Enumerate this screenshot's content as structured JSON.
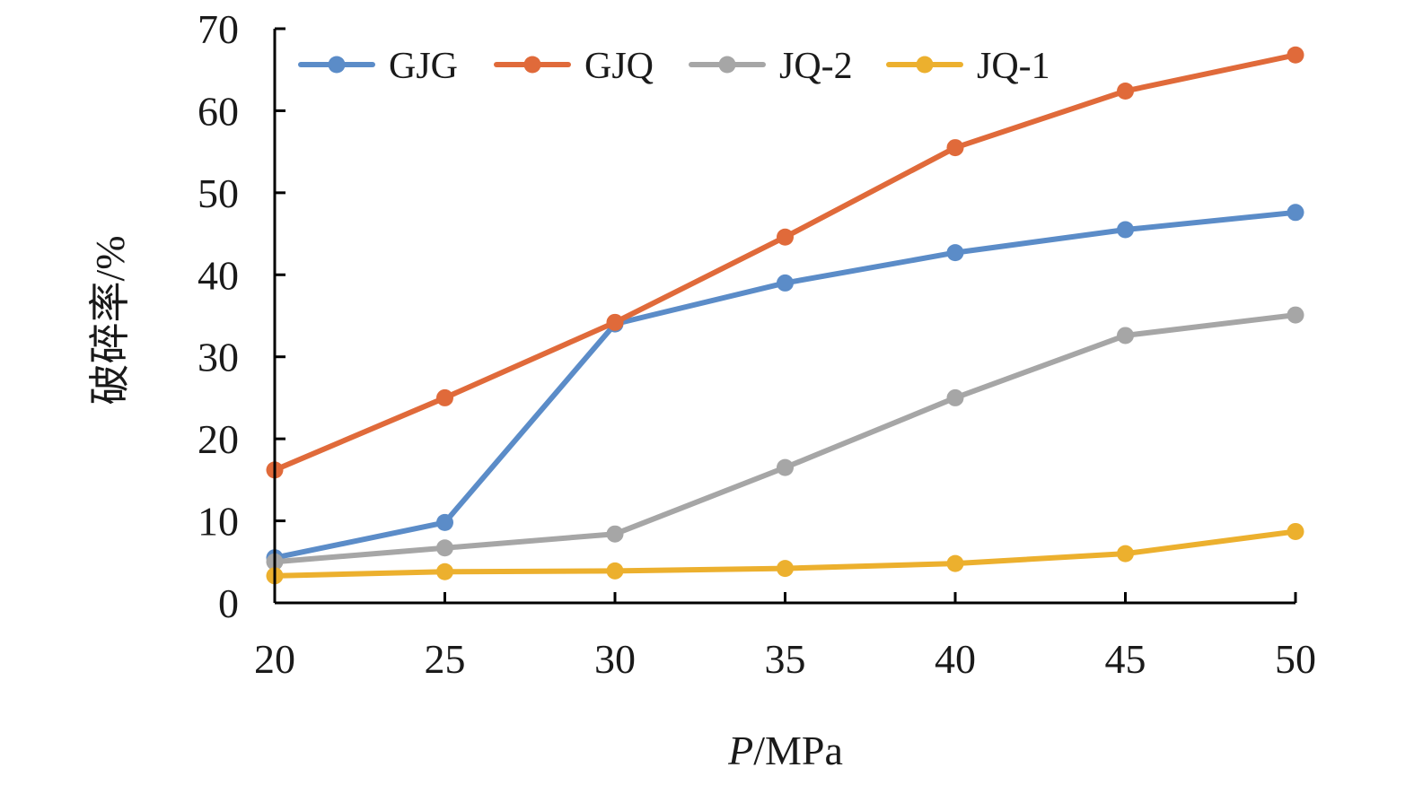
{
  "chart_data": {
    "type": "line",
    "x": [
      20,
      25,
      30,
      35,
      40,
      45,
      50
    ],
    "series": [
      {
        "name": "GJG",
        "color": "#5b8cc8",
        "values": [
          5.5,
          9.8,
          34.0,
          39.0,
          42.7,
          45.5,
          47.6
        ]
      },
      {
        "name": "GJQ",
        "color": "#e06a3a",
        "values": [
          16.2,
          25.0,
          34.2,
          44.6,
          55.5,
          62.4,
          66.8
        ]
      },
      {
        "name": "JQ-2",
        "color": "#a6a6a6",
        "values": [
          5.0,
          6.7,
          8.4,
          16.5,
          25.0,
          32.6,
          35.1
        ]
      },
      {
        "name": "JQ-1",
        "color": "#ecb02e",
        "values": [
          3.3,
          3.8,
          3.9,
          4.2,
          4.8,
          6.0,
          8.7
        ]
      }
    ],
    "xlabel_italic": "P",
    "xlabel_rest": "/MPa",
    "ylabel": "破碎率/%",
    "xlim": [
      20,
      50
    ],
    "ylim": [
      0,
      70
    ],
    "xticks": [
      "20",
      "25",
      "30",
      "35",
      "40",
      "45",
      "50"
    ],
    "yticks": [
      "0",
      "10",
      "20",
      "30",
      "40",
      "50",
      "60",
      "70"
    ],
    "legend_position": "top",
    "grid": false
  }
}
